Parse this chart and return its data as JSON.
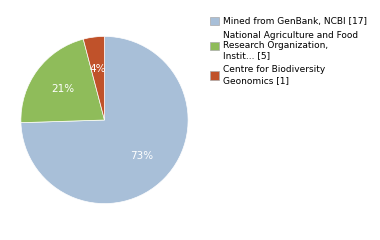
{
  "slices": [
    73,
    21,
    4
  ],
  "colors": [
    "#a8bfd8",
    "#8fbc5a",
    "#c0522a"
  ],
  "labels": [
    "73%",
    "21%",
    "4%"
  ],
  "legend_labels": [
    "Mined from GenBank, NCBI [17]",
    "National Agriculture and Food\nResearch Organization,\nInstit... [5]",
    "Centre for Biodiversity\nGeonomics [1]"
  ],
  "startangle": 90,
  "text_color": "white",
  "fontsize": 7.5,
  "legend_fontsize": 6.5
}
